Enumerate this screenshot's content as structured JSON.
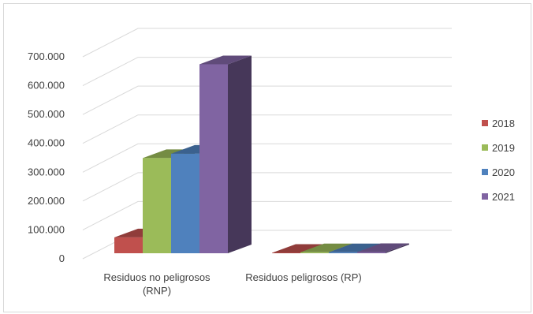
{
  "chart_data": {
    "type": "bar",
    "title": "",
    "xlabel": "",
    "ylabel": "",
    "categories": [
      "Residuos no peligrosos\n(RNP)",
      "Residuos peligrosos (RP)"
    ],
    "yticks": [
      "0",
      "100.000",
      "200.000",
      "300.000",
      "400.000",
      "500.000",
      "600.000",
      "700.000"
    ],
    "ylim": [
      0,
      700000
    ],
    "grid": true,
    "legend_position": "right",
    "series": [
      {
        "name": "2018",
        "color": "#c0504d",
        "values": [
          55000,
          1500
        ]
      },
      {
        "name": "2019",
        "color": "#9bbb59",
        "values": [
          330000,
          3500
        ]
      },
      {
        "name": "2020",
        "color": "#4f81bd",
        "values": [
          345000,
          3500
        ]
      },
      {
        "name": "2021",
        "color": "#8064a2",
        "values": [
          655000,
          4000
        ]
      }
    ]
  }
}
